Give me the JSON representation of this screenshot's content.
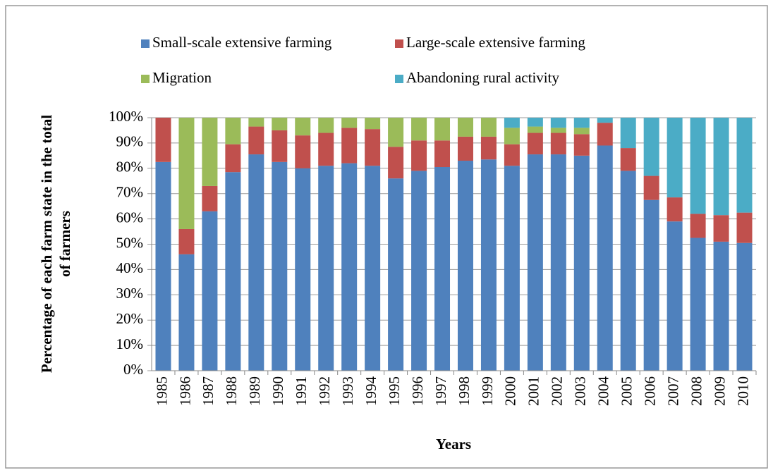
{
  "chart_data": {
    "type": "stacked_bar",
    "ylabel": [
      "Percentage of each farm state in the total",
      "of farmers"
    ],
    "xlabel": "Years",
    "categories": [
      "1985",
      "1986",
      "1987",
      "1988",
      "1989",
      "1990",
      "1991",
      "1992",
      "1993",
      "1994",
      "1995",
      "1996",
      "1997",
      "1998",
      "1999",
      "2000",
      "2001",
      "2002",
      "2003",
      "2004",
      "2005",
      "2006",
      "2007",
      "2008",
      "2009",
      "2010"
    ],
    "series": [
      {
        "name": "Small-scale extensive farming",
        "color": "#4f81bd",
        "values": [
          82.5,
          46,
          63,
          78.5,
          85.5,
          82.5,
          80,
          81,
          82,
          81,
          76,
          79,
          80.5,
          83,
          83.5,
          81,
          85.5,
          85.5,
          85,
          89,
          79,
          67.5,
          59,
          52.5,
          51,
          50.5
        ]
      },
      {
        "name": "Large-scale extensive farming",
        "color": "#c0504d",
        "values": [
          17.5,
          10,
          10,
          11,
          11,
          12.5,
          13,
          13,
          14,
          14.5,
          12.5,
          12,
          10.5,
          9.5,
          9,
          8.5,
          8.5,
          8.5,
          8.5,
          9,
          9,
          9.5,
          9.5,
          9.5,
          10.5,
          12
        ]
      },
      {
        "name": "Migration",
        "color": "#9bbb59",
        "values": [
          0,
          44,
          27,
          10.5,
          3.5,
          5,
          7,
          6,
          4,
          4.5,
          11.5,
          9,
          9,
          7.5,
          7.5,
          6.5,
          2.5,
          2,
          2.5,
          0,
          0,
          0,
          0,
          0,
          0,
          0
        ]
      },
      {
        "name": "Abandoning rural activity",
        "color": "#4bacc6",
        "values": [
          0,
          0,
          0,
          0,
          0,
          0,
          0,
          0,
          0,
          0,
          0,
          0,
          0,
          0,
          0,
          4,
          3.5,
          4,
          4,
          2,
          12,
          23,
          31.5,
          38,
          38.5,
          37.5
        ]
      }
    ],
    "ylim": [
      0,
      100
    ],
    "yticks": [
      {
        "value": 0,
        "label": "0%"
      },
      {
        "value": 10,
        "label": "10%"
      },
      {
        "value": 20,
        "label": "20%"
      },
      {
        "value": 30,
        "label": "30%"
      },
      {
        "value": 40,
        "label": "40%"
      },
      {
        "value": 50,
        "label": "50%"
      },
      {
        "value": 60,
        "label": "60%"
      },
      {
        "value": 70,
        "label": "70%"
      },
      {
        "value": 80,
        "label": "80%"
      },
      {
        "value": 90,
        "label": "90%"
      },
      {
        "value": 100,
        "label": "100%"
      }
    ],
    "grid": true
  }
}
